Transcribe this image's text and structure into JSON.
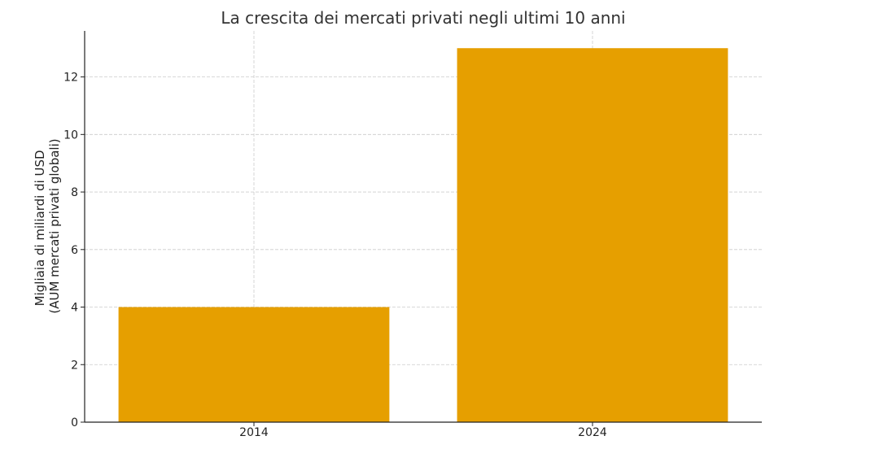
{
  "chart_data": {
    "type": "bar",
    "title": "La crescita dei mercati privati negli ultimi 10 anni",
    "categories": [
      "2014",
      "2024"
    ],
    "values": [
      4,
      13
    ],
    "xlabel": "",
    "ylabel_lines": [
      "Migliaia di miliardi di USD",
      "(AUM mercati privati globali)"
    ],
    "ylim": [
      0,
      13.6
    ],
    "yticks": [
      0,
      2,
      4,
      6,
      8,
      10,
      12
    ],
    "grid": true,
    "bar_color": "#e69f00"
  }
}
